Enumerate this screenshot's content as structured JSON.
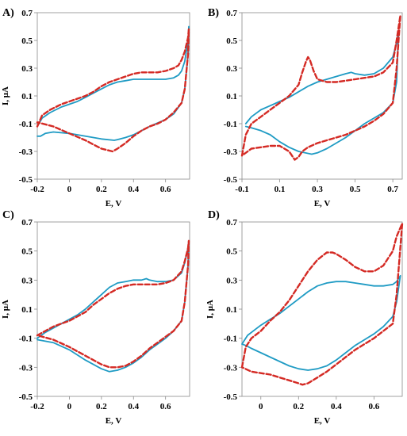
{
  "chart_data": [
    {
      "type": "line",
      "panel_label": "A)",
      "xlabel": "E, V",
      "ylabel": "I, μA",
      "xlim": [
        -0.2,
        0.75
      ],
      "ylim": [
        -0.5,
        0.7
      ],
      "xticks": [
        -0.2,
        0,
        0.2,
        0.4,
        0.6
      ],
      "yticks": [
        -0.5,
        -0.3,
        -0.1,
        0.1,
        0.3,
        0.5,
        0.7
      ],
      "grid": false,
      "series": [
        {
          "color": "#1f9bc4",
          "style": "solid",
          "x": [
            -0.2,
            -0.17,
            -0.12,
            -0.05,
            0.0,
            0.05,
            0.1,
            0.15,
            0.2,
            0.25,
            0.3,
            0.35,
            0.4,
            0.45,
            0.5,
            0.55,
            0.6,
            0.65,
            0.68,
            0.7,
            0.72,
            0.74,
            0.745,
            0.74,
            0.72,
            0.7,
            0.65,
            0.6,
            0.5,
            0.45,
            0.4,
            0.35,
            0.3,
            0.28,
            0.2,
            0.1,
            0.0,
            -0.1,
            -0.15,
            -0.18,
            -0.2
          ],
          "y": [
            -0.12,
            -0.06,
            -0.02,
            0.02,
            0.04,
            0.06,
            0.09,
            0.12,
            0.15,
            0.18,
            0.2,
            0.21,
            0.22,
            0.22,
            0.22,
            0.22,
            0.22,
            0.23,
            0.25,
            0.28,
            0.35,
            0.5,
            0.6,
            0.4,
            0.15,
            0.05,
            -0.03,
            -0.07,
            -0.12,
            -0.15,
            -0.18,
            -0.2,
            -0.215,
            -0.22,
            -0.21,
            -0.19,
            -0.17,
            -0.16,
            -0.17,
            -0.19,
            -0.19
          ]
        },
        {
          "color": "#d42a24",
          "style": "dashed",
          "x": [
            -0.2,
            -0.17,
            -0.12,
            -0.05,
            0.0,
            0.05,
            0.1,
            0.15,
            0.2,
            0.25,
            0.3,
            0.35,
            0.4,
            0.45,
            0.5,
            0.55,
            0.6,
            0.65,
            0.68,
            0.7,
            0.72,
            0.74,
            0.745,
            0.74,
            0.72,
            0.7,
            0.65,
            0.6,
            0.55,
            0.5,
            0.45,
            0.4,
            0.35,
            0.3,
            0.27,
            0.2,
            0.1,
            0.0,
            -0.1,
            -0.2
          ],
          "y": [
            -0.12,
            -0.04,
            0.0,
            0.04,
            0.06,
            0.08,
            0.1,
            0.13,
            0.17,
            0.2,
            0.22,
            0.24,
            0.26,
            0.27,
            0.27,
            0.27,
            0.28,
            0.3,
            0.32,
            0.36,
            0.42,
            0.52,
            0.58,
            0.4,
            0.15,
            0.05,
            -0.02,
            -0.07,
            -0.1,
            -0.12,
            -0.15,
            -0.19,
            -0.24,
            -0.28,
            -0.3,
            -0.28,
            -0.22,
            -0.17,
            -0.12,
            -0.09
          ]
        }
      ]
    },
    {
      "type": "line",
      "panel_label": "B)",
      "xlabel": "E, V",
      "ylabel": "",
      "xlim": [
        -0.1,
        0.75
      ],
      "ylim": [
        -0.5,
        0.7
      ],
      "xticks": [
        -0.1,
        0.1,
        0.3,
        0.5,
        0.7
      ],
      "yticks": [
        -0.5,
        -0.3,
        -0.1,
        0.1,
        0.3,
        0.5,
        0.7
      ],
      "grid": false,
      "series": [
        {
          "color": "#1f9bc4",
          "style": "solid",
          "x": [
            -0.08,
            -0.05,
            0.0,
            0.05,
            0.1,
            0.15,
            0.2,
            0.25,
            0.3,
            0.35,
            0.4,
            0.45,
            0.48,
            0.5,
            0.55,
            0.6,
            0.65,
            0.7,
            0.72,
            0.73,
            0.72,
            0.7,
            0.65,
            0.6,
            0.55,
            0.5,
            0.45,
            0.4,
            0.35,
            0.3,
            0.27,
            0.2,
            0.15,
            0.1,
            0.05,
            0.0,
            -0.05,
            -0.08
          ],
          "y": [
            -0.1,
            -0.05,
            0.0,
            0.03,
            0.06,
            0.09,
            0.13,
            0.17,
            0.2,
            0.22,
            0.24,
            0.26,
            0.27,
            0.26,
            0.25,
            0.26,
            0.3,
            0.38,
            0.48,
            0.55,
            0.2,
            0.05,
            -0.02,
            -0.06,
            -0.1,
            -0.15,
            -0.2,
            -0.24,
            -0.28,
            -0.31,
            -0.32,
            -0.3,
            -0.27,
            -0.23,
            -0.18,
            -0.15,
            -0.13,
            -0.12
          ]
        },
        {
          "color": "#d42a24",
          "style": "dashed",
          "x": [
            -0.1,
            -0.08,
            -0.05,
            0.0,
            0.05,
            0.1,
            0.15,
            0.2,
            0.22,
            0.24,
            0.25,
            0.26,
            0.28,
            0.3,
            0.35,
            0.4,
            0.45,
            0.5,
            0.55,
            0.6,
            0.65,
            0.7,
            0.72,
            0.74,
            0.72,
            0.7,
            0.65,
            0.6,
            0.55,
            0.5,
            0.45,
            0.4,
            0.35,
            0.3,
            0.25,
            0.22,
            0.2,
            0.18,
            0.15,
            0.1,
            0.05,
            0.0,
            -0.05,
            -0.1
          ],
          "y": [
            -0.33,
            -0.18,
            -0.1,
            -0.05,
            0.0,
            0.05,
            0.1,
            0.18,
            0.27,
            0.35,
            0.38,
            0.36,
            0.28,
            0.22,
            0.2,
            0.2,
            0.21,
            0.22,
            0.23,
            0.24,
            0.27,
            0.34,
            0.5,
            0.68,
            0.3,
            0.05,
            -0.03,
            -0.08,
            -0.12,
            -0.15,
            -0.18,
            -0.2,
            -0.22,
            -0.24,
            -0.27,
            -0.3,
            -0.34,
            -0.36,
            -0.3,
            -0.26,
            -0.26,
            -0.27,
            -0.28,
            -0.33
          ]
        }
      ]
    },
    {
      "type": "line",
      "panel_label": "C)",
      "xlabel": "E, V",
      "ylabel": "I, μA",
      "xlim": [
        -0.2,
        0.75
      ],
      "ylim": [
        -0.5,
        0.7
      ],
      "xticks": [
        -0.2,
        0,
        0.2,
        0.4,
        0.6
      ],
      "yticks": [
        -0.5,
        -0.3,
        -0.1,
        0.1,
        0.3,
        0.5,
        0.7
      ],
      "grid": false,
      "series": [
        {
          "color": "#1f9bc4",
          "style": "solid",
          "x": [
            -0.2,
            -0.15,
            -0.1,
            -0.05,
            0.0,
            0.05,
            0.1,
            0.15,
            0.2,
            0.25,
            0.3,
            0.35,
            0.4,
            0.45,
            0.48,
            0.5,
            0.55,
            0.6,
            0.65,
            0.7,
            0.72,
            0.74,
            0.745,
            0.74,
            0.72,
            0.7,
            0.65,
            0.6,
            0.55,
            0.5,
            0.45,
            0.4,
            0.35,
            0.3,
            0.25,
            0.2,
            0.1,
            0.0,
            -0.1,
            -0.2
          ],
          "y": [
            -0.1,
            -0.06,
            -0.03,
            0.0,
            0.03,
            0.06,
            0.1,
            0.15,
            0.2,
            0.25,
            0.28,
            0.29,
            0.3,
            0.3,
            0.31,
            0.3,
            0.29,
            0.29,
            0.3,
            0.35,
            0.42,
            0.52,
            0.57,
            0.4,
            0.15,
            0.02,
            -0.05,
            -0.1,
            -0.14,
            -0.18,
            -0.23,
            -0.27,
            -0.3,
            -0.32,
            -0.33,
            -0.31,
            -0.25,
            -0.18,
            -0.13,
            -0.11
          ]
        },
        {
          "color": "#d42a24",
          "style": "dashed",
          "x": [
            -0.2,
            -0.15,
            -0.1,
            -0.05,
            0.0,
            0.05,
            0.1,
            0.15,
            0.2,
            0.25,
            0.3,
            0.35,
            0.4,
            0.45,
            0.5,
            0.55,
            0.6,
            0.65,
            0.7,
            0.72,
            0.74,
            0.745,
            0.74,
            0.72,
            0.7,
            0.65,
            0.6,
            0.55,
            0.5,
            0.45,
            0.4,
            0.35,
            0.3,
            0.25,
            0.2,
            0.1,
            0.0,
            -0.1,
            -0.2
          ],
          "y": [
            -0.08,
            -0.05,
            -0.02,
            0.0,
            0.02,
            0.05,
            0.08,
            0.13,
            0.17,
            0.21,
            0.24,
            0.26,
            0.27,
            0.27,
            0.27,
            0.27,
            0.28,
            0.3,
            0.36,
            0.43,
            0.52,
            0.57,
            0.4,
            0.15,
            0.02,
            -0.05,
            -0.09,
            -0.13,
            -0.17,
            -0.22,
            -0.26,
            -0.29,
            -0.3,
            -0.3,
            -0.28,
            -0.22,
            -0.16,
            -0.11,
            -0.08
          ]
        }
      ]
    },
    {
      "type": "line",
      "panel_label": "D)",
      "xlabel": "E, V",
      "ylabel": "I, μA",
      "xlim": [
        -0.1,
        0.75
      ],
      "ylim": [
        -0.5,
        0.7
      ],
      "xticks": [
        0,
        0.2,
        0.4,
        0.6
      ],
      "yticks": [
        -0.5,
        -0.3,
        -0.1,
        0.1,
        0.3,
        0.5,
        0.7
      ],
      "grid": false,
      "series": [
        {
          "color": "#1f9bc4",
          "style": "solid",
          "x": [
            -0.1,
            -0.07,
            -0.03,
            0.0,
            0.05,
            0.1,
            0.15,
            0.2,
            0.25,
            0.3,
            0.35,
            0.4,
            0.45,
            0.5,
            0.55,
            0.6,
            0.65,
            0.7,
            0.72,
            0.74,
            0.72,
            0.7,
            0.65,
            0.6,
            0.55,
            0.5,
            0.45,
            0.4,
            0.35,
            0.3,
            0.25,
            0.2,
            0.15,
            0.1,
            0.05,
            0.0,
            -0.05,
            -0.08,
            -0.1
          ],
          "y": [
            -0.14,
            -0.08,
            -0.04,
            -0.01,
            0.03,
            0.07,
            0.12,
            0.17,
            0.22,
            0.26,
            0.28,
            0.29,
            0.29,
            0.28,
            0.27,
            0.26,
            0.26,
            0.27,
            0.29,
            0.33,
            0.15,
            0.05,
            -0.02,
            -0.07,
            -0.11,
            -0.15,
            -0.2,
            -0.25,
            -0.29,
            -0.31,
            -0.32,
            -0.31,
            -0.29,
            -0.26,
            -0.23,
            -0.2,
            -0.17,
            -0.15,
            -0.14
          ]
        },
        {
          "color": "#d42a24",
          "style": "dashed",
          "x": [
            -0.1,
            -0.08,
            -0.05,
            0.0,
            0.05,
            0.1,
            0.15,
            0.2,
            0.25,
            0.3,
            0.35,
            0.38,
            0.4,
            0.45,
            0.5,
            0.55,
            0.6,
            0.65,
            0.7,
            0.72,
            0.75,
            0.72,
            0.7,
            0.65,
            0.6,
            0.55,
            0.5,
            0.45,
            0.4,
            0.35,
            0.3,
            0.25,
            0.22,
            0.2,
            0.15,
            0.1,
            0.05,
            0.0,
            -0.05,
            -0.1
          ],
          "y": [
            -0.3,
            -0.16,
            -0.1,
            -0.05,
            0.02,
            0.08,
            0.16,
            0.26,
            0.36,
            0.44,
            0.49,
            0.49,
            0.48,
            0.44,
            0.39,
            0.36,
            0.36,
            0.4,
            0.5,
            0.6,
            0.69,
            0.2,
            0.0,
            -0.05,
            -0.1,
            -0.14,
            -0.18,
            -0.23,
            -0.28,
            -0.33,
            -0.37,
            -0.41,
            -0.42,
            -0.41,
            -0.39,
            -0.37,
            -0.35,
            -0.34,
            -0.33,
            -0.3
          ]
        }
      ]
    }
  ]
}
